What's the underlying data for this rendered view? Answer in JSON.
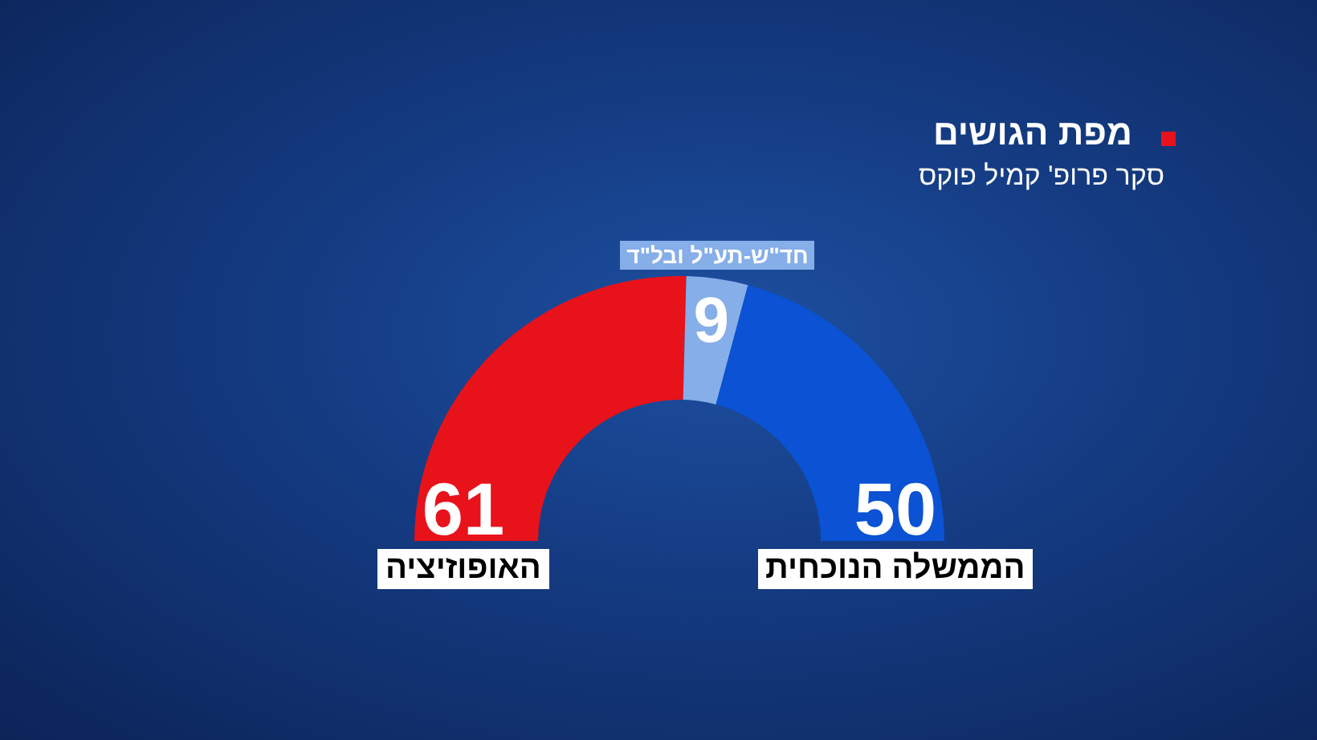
{
  "chart_data": {
    "type": "donut",
    "title": "מפת הגושים",
    "subtitle": "סקר פרופ' קמיל פוקס",
    "categories": [
      "האופוזיציה",
      "חד\"ש-תע\"ל ובל\"ד",
      "הממשלה הנוכחית"
    ],
    "values": [
      61,
      9,
      50
    ],
    "colors": [
      "#e8121b",
      "#86aee8",
      "#0b52d4"
    ],
    "data_labels": true
  }
}
